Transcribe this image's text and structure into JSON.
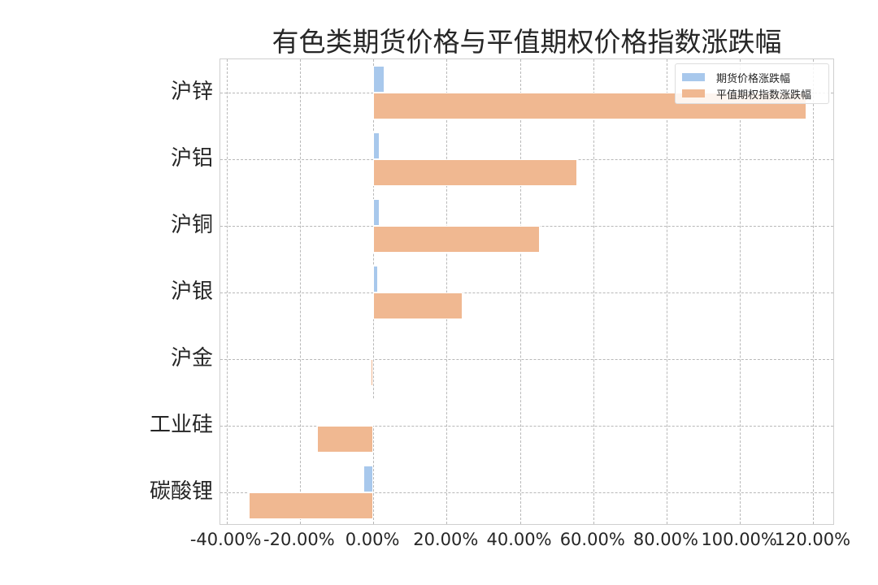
{
  "chart_data": {
    "type": "bar",
    "orientation": "horizontal",
    "title": "有色类期货价格与平值期权价格指数涨跌幅",
    "xlabel": "",
    "ylabel": "",
    "xlim": [
      -41.7,
      125.9
    ],
    "grid": true,
    "legend_position": "upper right",
    "categories": [
      "沪锌",
      "沪铝",
      "沪铜",
      "沪银",
      "沪金",
      "工业硅",
      "碳酸锂"
    ],
    "series": [
      {
        "name": "期货价格涨跌幅",
        "color": "#a8c8ec",
        "values": [
          3.1,
          1.7,
          1.7,
          1.3,
          -0.4,
          0.3,
          -2.7
        ]
      },
      {
        "name": "平值期权指数涨跌幅",
        "color": "#f0b891",
        "values": [
          118.2,
          55.7,
          45.5,
          24.4,
          -0.7,
          -15.3,
          -33.9
        ]
      }
    ],
    "x_ticks": [
      {
        "value": -40,
        "label": "-40.00%"
      },
      {
        "value": -20,
        "label": "-20.00%"
      },
      {
        "value": 0,
        "label": "0.00%"
      },
      {
        "value": 20,
        "label": "20.00%"
      },
      {
        "value": 40,
        "label": "40.00%"
      },
      {
        "value": 60,
        "label": "60.00%"
      },
      {
        "value": 80,
        "label": "80.00%"
      },
      {
        "value": 100,
        "label": "100.00%"
      },
      {
        "value": 120,
        "label": "120.00%"
      }
    ]
  },
  "legend": {
    "items": [
      {
        "label": "期货价格涨跌幅",
        "color": "#a8c8ec"
      },
      {
        "label": "平值期权指数涨跌幅",
        "color": "#f0b891"
      }
    ]
  }
}
